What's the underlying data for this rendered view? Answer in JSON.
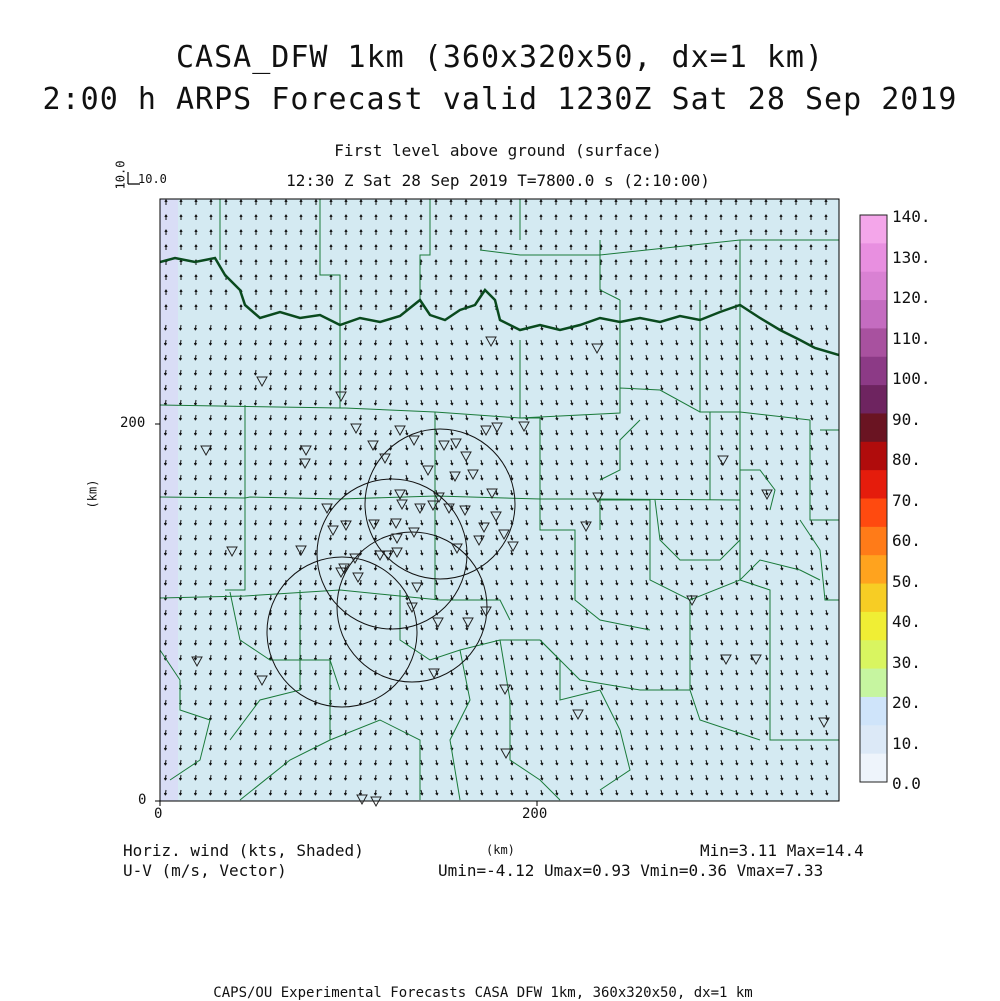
{
  "header": {
    "title_line1": "CASA_DFW 1km (360x320x50, dx=1 km)",
    "title_line2": "2:00 h ARPS Forecast valid 1230Z Sat 28 Sep 2019",
    "level": "First level above ground (surface)",
    "time_info": "12:30 Z Sat 28 Sep 2019   T=7800.0 s (2:10:00)"
  },
  "reference_vector": {
    "x_label": "10.0",
    "y_label": "10.0"
  },
  "axes": {
    "x_ticks": [
      "0",
      "200"
    ],
    "y_ticks": [
      "0",
      "200"
    ],
    "y_unit": "(km)",
    "x_unit": "(km)"
  },
  "colorbar": {
    "labels": [
      "140.",
      "130.",
      "120.",
      "110.",
      "100.",
      "90.",
      "80.",
      "70.",
      "60.",
      "50.",
      "40.",
      "30.",
      "20.",
      "10.",
      "0.0"
    ],
    "colors": [
      "#f4a6ea",
      "#e88fe0",
      "#d981d3",
      "#c46cc0",
      "#a8519f",
      "#8c3a86",
      "#6e2460",
      "#6a1422",
      "#b00c0c",
      "#e51c0c",
      "#ff4a0f",
      "#ff7b18",
      "#ffa31e",
      "#f7cd24",
      "#f0ee34",
      "#d9f560",
      "#c6f5a0",
      "#cfe4fa",
      "#dce9f7",
      "#eef4fb"
    ]
  },
  "bottom": {
    "left_line1": "Horiz. wind (kts, Shaded)",
    "left_line2": "U-V (m/s, Vector)",
    "right_line1": "Min=3.11 Max=14.4",
    "right_line2": "Umin=-4.12 Umax=0.93 Vmin=0.36 Vmax=7.33"
  },
  "footer": "CAPS/OU Experimental Forecasts  CASA DFW 1km, 360x320x50, dx=1 km",
  "map_colors": {
    "field": "#d4eaf2",
    "boundary": "#1a7a3a",
    "state_line": "#0a4a1e"
  }
}
